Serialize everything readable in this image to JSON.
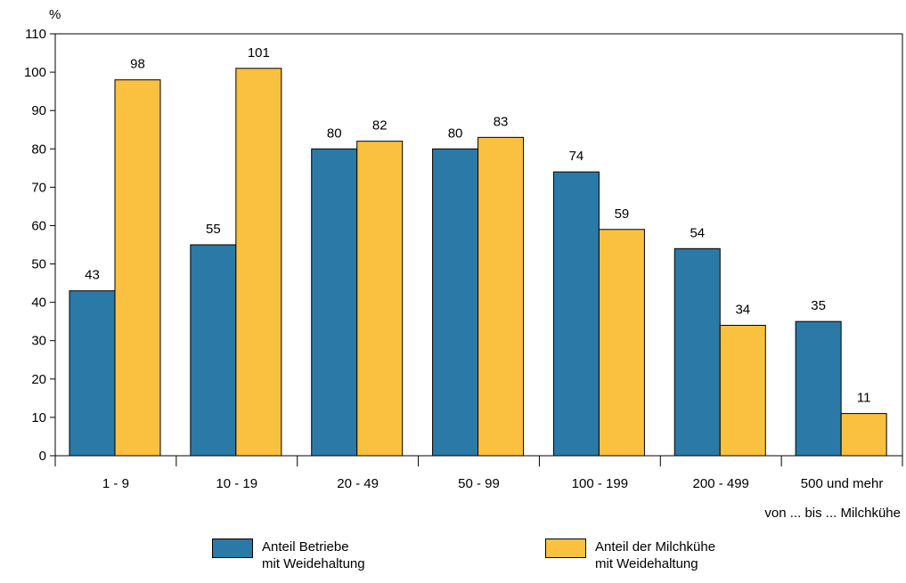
{
  "chart_data": {
    "type": "bar",
    "y_unit_label": "%",
    "x_unit_label": "von ... bis ... Milchkühe",
    "ylim": [
      0,
      110
    ],
    "y_ticks": [
      0,
      10,
      20,
      30,
      40,
      50,
      60,
      70,
      80,
      90,
      100,
      110
    ],
    "categories": [
      "1 - 9",
      "10 - 19",
      "20 - 49",
      "50 - 99",
      "100 - 199",
      "200 - 499",
      "500 und mehr"
    ],
    "series": [
      {
        "name": "Anteil Betriebe mit Weidehaltung",
        "legend_lines": [
          "Anteil Betriebe",
          "mit Weidehaltung"
        ],
        "color": "#2b79a6",
        "values": [
          43,
          55,
          80,
          80,
          74,
          54,
          35
        ]
      },
      {
        "name": "Anteil der Milchkühe mit Weidehaltung",
        "legend_lines": [
          "Anteil der Milchkühe",
          "mit Weidehaltung"
        ],
        "color": "#f9c13f",
        "values": [
          98,
          101,
          82,
          83,
          59,
          34,
          11
        ]
      }
    ],
    "grid": false,
    "legend_position": "bottom"
  }
}
